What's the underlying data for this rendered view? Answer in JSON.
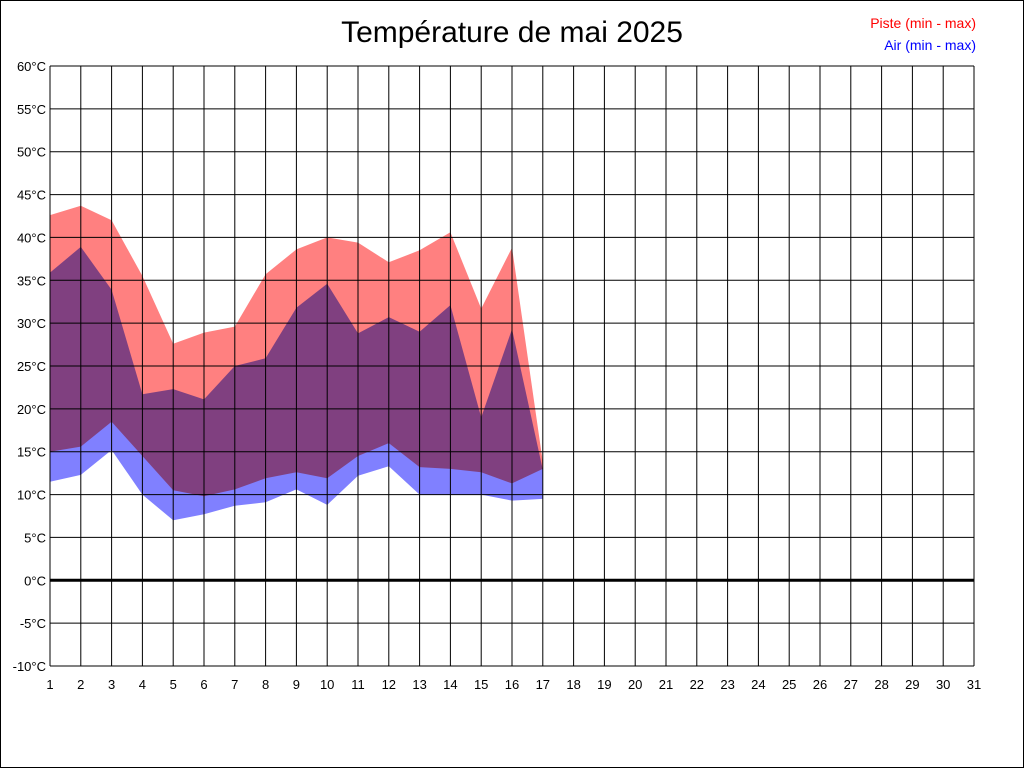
{
  "chart_data": {
    "type": "area",
    "title": "Température de mai 2025",
    "xlabel": "",
    "ylabel": "",
    "x": [
      1,
      2,
      3,
      4,
      5,
      6,
      7,
      8,
      9,
      10,
      11,
      12,
      13,
      14,
      15,
      16,
      17,
      18,
      19,
      20,
      21,
      22,
      23,
      24,
      25,
      26,
      27,
      28,
      29,
      30,
      31
    ],
    "x_ticks": [
      "1",
      "2",
      "3",
      "4",
      "5",
      "6",
      "7",
      "8",
      "9",
      "10",
      "11",
      "12",
      "13",
      "14",
      "15",
      "16",
      "17",
      "18",
      "19",
      "20",
      "21",
      "22",
      "23",
      "24",
      "25",
      "26",
      "27",
      "28",
      "29",
      "30",
      "31"
    ],
    "ylim": [
      -10,
      60
    ],
    "y_ticks": [
      "-10°C",
      "-5°C",
      "0°C",
      "5°C",
      "10°C",
      "15°C",
      "20°C",
      "25°C",
      "30°C",
      "35°C",
      "40°C",
      "45°C",
      "50°C",
      "55°C",
      "60°C"
    ],
    "y_tick_values": [
      -10,
      -5,
      0,
      5,
      10,
      15,
      20,
      25,
      30,
      35,
      40,
      45,
      50,
      55,
      60
    ],
    "grid": true,
    "legend_position": "top-right",
    "series": [
      {
        "name": "Piste (min - max)",
        "color": "#ff8080",
        "x": [
          1,
          2,
          3,
          4,
          5,
          6,
          7,
          8,
          9,
          10,
          11,
          12,
          13,
          14,
          15,
          16,
          17
        ],
        "min": [
          15.0,
          15.6,
          18.5,
          14.5,
          10.5,
          9.8,
          10.6,
          11.9,
          12.6,
          11.9,
          14.5,
          16.0,
          13.2,
          13.0,
          12.6,
          11.3,
          13.0
        ],
        "max": [
          42.6,
          43.7,
          42.0,
          35.5,
          27.6,
          28.9,
          29.6,
          35.7,
          38.6,
          40.0,
          39.4,
          37.1,
          38.5,
          40.6,
          31.7,
          38.8,
          13.8
        ]
      },
      {
        "name": "Air (min - max)",
        "color": "#8080ff",
        "x": [
          1,
          2,
          3,
          4,
          5,
          6,
          7,
          8,
          9,
          10,
          11,
          12,
          13,
          14,
          15,
          16,
          17
        ],
        "min": [
          11.5,
          12.3,
          15.2,
          10.0,
          7.0,
          7.7,
          8.7,
          9.1,
          10.6,
          8.8,
          12.2,
          13.3,
          10.0,
          10.0,
          10.0,
          9.3,
          9.5
        ],
        "max": [
          35.9,
          38.9,
          33.9,
          21.7,
          22.3,
          21.1,
          25.0,
          25.9,
          31.8,
          34.6,
          28.8,
          30.7,
          29.0,
          32.1,
          19.0,
          29.3,
          12.9
        ]
      }
    ]
  }
}
